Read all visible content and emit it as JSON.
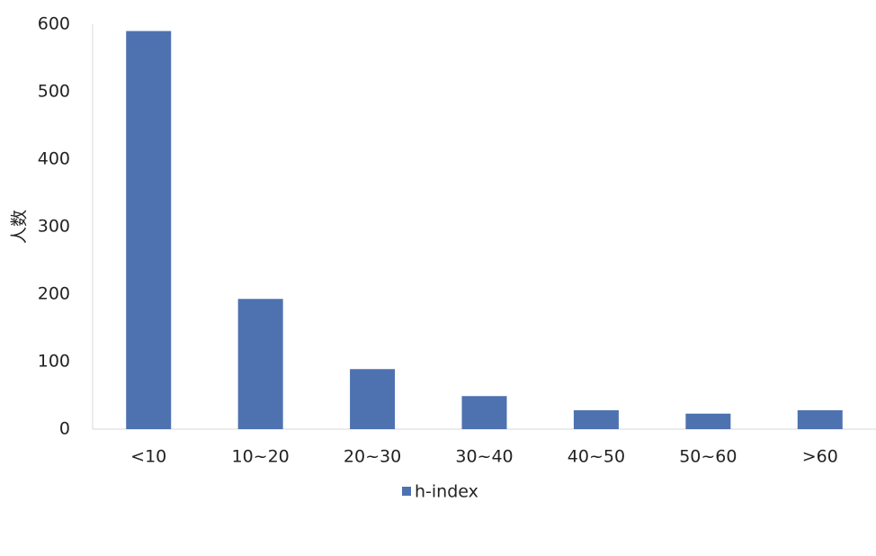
{
  "chart_data": {
    "type": "bar",
    "y_label": "人数",
    "categories": [
      "<10",
      "10~20",
      "20~30",
      "30~40",
      "40~50",
      "50~60",
      ">60"
    ],
    "series": [
      {
        "name": "h-index",
        "color": "#4e72b0",
        "values": [
          590,
          193,
          89,
          49,
          28,
          23,
          28
        ]
      }
    ],
    "ylim": [
      0,
      600
    ],
    "yticks": [
      0,
      100,
      200,
      300,
      400,
      500,
      600
    ],
    "grid": false
  }
}
